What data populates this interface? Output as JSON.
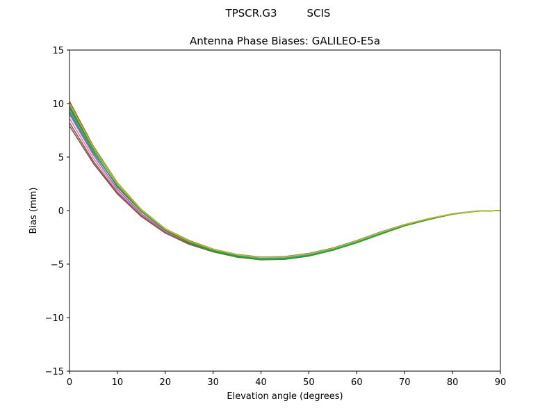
{
  "figure": {
    "suptitle_left": "TPSCR.G3",
    "suptitle_right": "SCIS"
  },
  "chart_data": {
    "type": "line",
    "title": "Antenna Phase Biases: GALILEO-E5a",
    "xlabel": "Elevation angle (degrees)",
    "ylabel": "Bias (mm)",
    "xlim": [
      0,
      90
    ],
    "ylim": [
      -15,
      15
    ],
    "xticks": [
      0,
      10,
      20,
      30,
      40,
      50,
      60,
      70,
      80,
      90
    ],
    "yticks": [
      -15,
      -10,
      -5,
      0,
      5,
      10,
      15
    ],
    "grid": false,
    "x": [
      0,
      5,
      10,
      15,
      20,
      25,
      30,
      35,
      40,
      45,
      50,
      55,
      60,
      65,
      70,
      75,
      80,
      85,
      90
    ],
    "series": [
      {
        "color": "#8c564b",
        "values": [
          10.2,
          6.0,
          2.6,
          0.1,
          -1.7,
          -2.8,
          -3.6,
          -4.1,
          -4.35,
          -4.3,
          -4.0,
          -3.5,
          -2.8,
          -2.0,
          -1.3,
          -0.75,
          -0.3,
          -0.05,
          0.0
        ]
      },
      {
        "color": "#8c564b",
        "values": [
          9.6,
          5.6,
          2.2,
          -0.1,
          -1.8,
          -2.9,
          -3.65,
          -4.15,
          -4.4,
          -4.35,
          -4.05,
          -3.55,
          -2.85,
          -2.05,
          -1.32,
          -0.76,
          -0.3,
          -0.05,
          0.0
        ]
      },
      {
        "color": "#9467bd",
        "values": [
          9.0,
          5.2,
          2.0,
          -0.3,
          -1.9,
          -3.0,
          -3.7,
          -4.2,
          -4.45,
          -4.4,
          -4.1,
          -3.6,
          -2.9,
          -2.1,
          -1.35,
          -0.78,
          -0.31,
          -0.05,
          0.0
        ]
      },
      {
        "color": "#e377c2",
        "values": [
          8.6,
          4.9,
          1.8,
          -0.4,
          -2.0,
          -3.05,
          -3.75,
          -4.25,
          -4.5,
          -4.45,
          -4.15,
          -3.62,
          -2.92,
          -2.12,
          -1.37,
          -0.8,
          -0.32,
          -0.05,
          0.0
        ]
      },
      {
        "color": "#8c564b",
        "values": [
          8.2,
          4.6,
          1.65,
          -0.5,
          -2.05,
          -3.1,
          -3.8,
          -4.3,
          -4.55,
          -4.5,
          -4.2,
          -3.65,
          -2.95,
          -2.15,
          -1.4,
          -0.82,
          -0.33,
          -0.05,
          0.0
        ]
      },
      {
        "color": "#8c564b",
        "values": [
          7.9,
          4.4,
          1.55,
          -0.55,
          -2.1,
          -3.15,
          -3.85,
          -4.35,
          -4.6,
          -4.55,
          -4.25,
          -3.7,
          -3.0,
          -2.2,
          -1.42,
          -0.84,
          -0.34,
          -0.05,
          0.0
        ]
      },
      {
        "color": "#17becf",
        "values": [
          9.4,
          5.5,
          2.3,
          -0.05,
          -1.75,
          -2.9,
          -3.7,
          -4.2,
          -4.45,
          -4.42,
          -4.12,
          -3.62,
          -2.92,
          -2.12,
          -1.36,
          -0.79,
          -0.31,
          -0.05,
          0.0
        ]
      },
      {
        "color": "#2ca02c",
        "values": [
          9.8,
          5.8,
          2.5,
          0.05,
          -1.7,
          -2.9,
          -3.75,
          -4.25,
          -4.55,
          -4.5,
          -4.2,
          -3.68,
          -2.98,
          -2.18,
          -1.4,
          -0.81,
          -0.32,
          -0.05,
          0.0
        ]
      },
      {
        "color": "#2ca02c",
        "values": [
          9.2,
          5.4,
          2.3,
          -0.1,
          -1.8,
          -3.0,
          -3.8,
          -4.3,
          -4.58,
          -4.52,
          -4.22,
          -3.7,
          -3.0,
          -2.2,
          -1.42,
          -0.83,
          -0.33,
          -0.05,
          0.0
        ]
      },
      {
        "color": "#bcbd22",
        "values": [
          10.0,
          5.9,
          2.55,
          0.05,
          -1.72,
          -2.85,
          -3.62,
          -4.12,
          -4.38,
          -4.33,
          -4.03,
          -3.53,
          -2.83,
          -2.03,
          -1.31,
          -0.75,
          -0.3,
          -0.05,
          0.0
        ]
      }
    ]
  }
}
